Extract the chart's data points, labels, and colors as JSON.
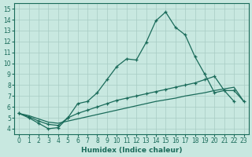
{
  "xlabel": "Humidex (Indice chaleur)",
  "xlim": [
    -0.5,
    23.5
  ],
  "ylim": [
    3.5,
    15.5
  ],
  "xticks": [
    0,
    1,
    2,
    3,
    4,
    5,
    6,
    7,
    8,
    9,
    10,
    11,
    12,
    13,
    14,
    15,
    16,
    17,
    18,
    19,
    20,
    21,
    22,
    23
  ],
  "yticks": [
    4,
    5,
    6,
    7,
    8,
    9,
    10,
    11,
    12,
    13,
    14,
    15
  ],
  "bg_color": "#c8e8e0",
  "line_color": "#1a6b5a",
  "grid_color": "#a8ccc4",
  "line1_x": [
    0,
    1,
    2,
    3,
    4,
    5,
    6,
    7,
    8,
    9,
    10,
    11,
    12,
    13,
    14,
    15,
    16,
    17,
    18,
    19,
    20,
    21,
    22
  ],
  "line1_y": [
    5.4,
    5.0,
    4.5,
    4.0,
    4.1,
    5.0,
    6.3,
    6.5,
    7.3,
    8.5,
    9.7,
    10.4,
    10.3,
    11.9,
    13.9,
    14.7,
    13.3,
    12.6,
    10.6,
    9.0,
    7.3,
    7.5,
    6.5
  ],
  "line2_x": [
    0,
    1,
    2,
    3,
    4,
    5,
    6,
    7,
    8,
    9,
    10,
    11,
    12,
    13,
    14,
    15,
    16,
    17,
    18,
    19,
    20,
    21,
    22,
    23
  ],
  "line2_y": [
    5.4,
    5.1,
    4.7,
    4.4,
    4.3,
    5.0,
    5.4,
    5.7,
    6.0,
    6.3,
    6.6,
    6.8,
    7.0,
    7.2,
    7.4,
    7.6,
    7.8,
    8.0,
    8.2,
    8.5,
    8.8,
    7.5,
    7.5,
    6.5
  ],
  "line3_x": [
    0,
    1,
    2,
    3,
    4,
    5,
    6,
    7,
    8,
    9,
    10,
    11,
    12,
    13,
    14,
    15,
    16,
    17,
    18,
    19,
    20,
    21,
    22,
    23
  ],
  "line3_y": [
    5.4,
    5.2,
    4.9,
    4.6,
    4.5,
    4.7,
    4.9,
    5.1,
    5.3,
    5.5,
    5.7,
    5.9,
    6.1,
    6.3,
    6.5,
    6.65,
    6.8,
    7.0,
    7.15,
    7.3,
    7.5,
    7.65,
    7.8,
    6.5
  ]
}
